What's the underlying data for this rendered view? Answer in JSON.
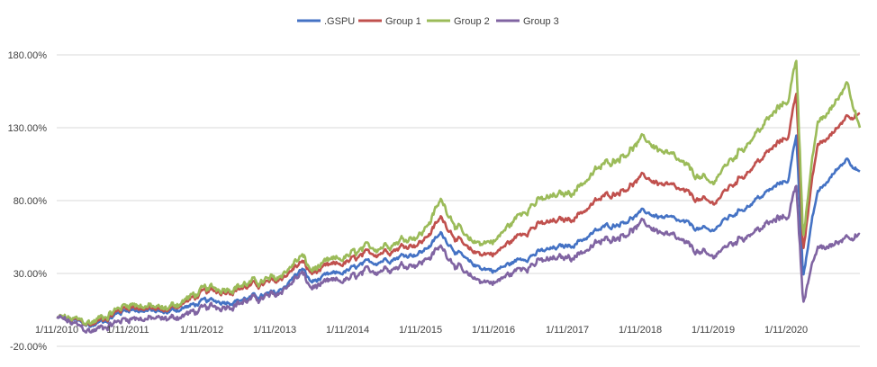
{
  "chart_data": {
    "type": "line",
    "title": "",
    "xlabel": "",
    "ylabel": "",
    "x_ticks": [
      "1/11/2010",
      "1/11/2011",
      "1/11/2012",
      "1/11/2013",
      "1/11/2014",
      "1/11/2015",
      "1/11/2016",
      "1/11/2017",
      "1/11/2018",
      "1/11/2019",
      "1/11/2020"
    ],
    "y_ticks": [
      "-20.00%",
      "30.00%",
      "80.00%",
      "130.00%",
      "180.00%"
    ],
    "ylim": [
      -20,
      180
    ],
    "xlim": [
      "2010-01-11",
      "2020-12-31"
    ],
    "grid": "horizontal",
    "legend_position": "top",
    "x": [
      "2010-01-11",
      "2010-07-01",
      "2011-01-11",
      "2011-07-01",
      "2012-01-11",
      "2012-07-01",
      "2013-01-11",
      "2013-05-20",
      "2013-07-01",
      "2014-01-11",
      "2014-07-01",
      "2015-01-11",
      "2015-04-15",
      "2015-09-01",
      "2016-01-11",
      "2016-07-01",
      "2017-01-11",
      "2017-07-01",
      "2018-01-25",
      "2018-12-24",
      "2019-01-11",
      "2019-07-01",
      "2020-01-11",
      "2020-02-19",
      "2020-03-23",
      "2020-06-01",
      "2020-09-01",
      "2020-11-01",
      "2020-12-31"
    ],
    "series": [
      {
        "name": ".GSPU",
        "color": "#4472C4",
        "values": [
          0,
          -6,
          6,
          3,
          10,
          12,
          16,
          33,
          24,
          32,
          40,
          45,
          57,
          36,
          32,
          43,
          49,
          61,
          72,
          58,
          62,
          78,
          95,
          126,
          30,
          84,
          100,
          110,
          100
        ]
      },
      {
        "name": "Group 1",
        "color": "#C0504D",
        "values": [
          0,
          -5,
          8,
          4,
          16,
          20,
          24,
          38,
          30,
          38,
          46,
          52,
          68,
          44,
          44,
          62,
          67,
          82,
          96,
          77,
          80,
          102,
          125,
          155,
          48,
          116,
          128,
          140,
          140
        ]
      },
      {
        "name": "Group 2",
        "color": "#9BBB59",
        "values": [
          0,
          -4,
          10,
          5,
          18,
          22,
          26,
          42,
          32,
          42,
          50,
          58,
          80,
          50,
          53,
          78,
          85,
          104,
          122,
          90,
          96,
          122,
          150,
          178,
          57,
          131,
          147,
          163,
          130
        ]
      },
      {
        "name": "Group 3",
        "color": "#8064A2",
        "values": [
          0,
          -10,
          0,
          -2,
          5,
          10,
          15,
          30,
          20,
          26,
          34,
          38,
          48,
          26,
          24,
          37,
          41,
          52,
          64,
          40,
          44,
          58,
          70,
          92,
          12,
          46,
          50,
          57,
          57
        ]
      }
    ]
  }
}
